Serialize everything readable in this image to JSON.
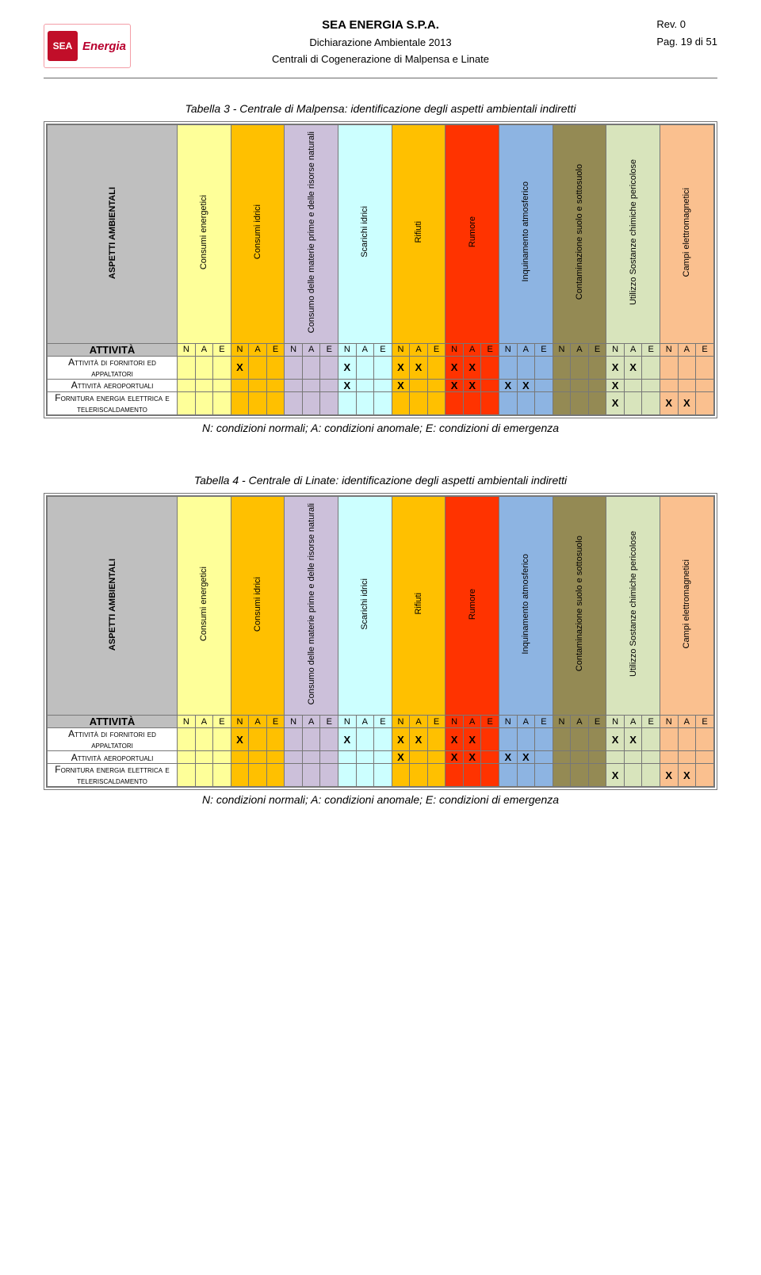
{
  "header": {
    "company": "SEA ENERGIA S.P.A.",
    "doc_title": "Dichiarazione Ambientale 2013",
    "subtitle": "Centrali di Cogenerazione di Malpensa e Linate",
    "rev": "Rev. 0",
    "page": "Pag. 19 di 51",
    "logo_abbr": "SEA",
    "logo_word": "Energia"
  },
  "aspects_label": "ASPETTI AMBIENTALI",
  "activities_label": "ATTIVITÀ",
  "nae_letters": [
    "N",
    "A",
    "E"
  ],
  "columns": [
    {
      "label": "Consumi energetici",
      "bg": "#feff99"
    },
    {
      "label": "Consumi idrici",
      "bg": "#ffc000"
    },
    {
      "label": "Consumo delle materie prime e delle risorse naturali",
      "bg": "#ccc0da"
    },
    {
      "label": "Scarichi idrici",
      "bg": "#ccffff"
    },
    {
      "label": "Rifiuti",
      "bg": "#ffc000"
    },
    {
      "label": "Rumore",
      "bg": "#ff3300"
    },
    {
      "label": "Inquinamento atmosferico",
      "bg": "#8db4e2"
    },
    {
      "label": "Contaminazione suolo e sottosuolo",
      "bg": "#948a54"
    },
    {
      "label": "Utilizzo Sostanze chimiche pericolose",
      "bg": "#d8e4bc"
    },
    {
      "label": "Campi elettromagnetici",
      "bg": "#fac08f"
    }
  ],
  "row_labels": [
    "Attività di fornitori ed appaltatori",
    "Attività aeroportuali",
    "Fornitura energia elettrica e teleriscaldamento"
  ],
  "table3": {
    "caption": "Tabella 3 - Centrale di Malpensa: identificazione degli aspetti ambientali indiretti",
    "marks": [
      [
        "",
        "",
        "",
        "X",
        "",
        "",
        "",
        "",
        "",
        "X",
        "",
        "",
        "X",
        "X",
        "",
        "X",
        "X",
        "",
        "",
        "",
        "",
        "",
        "",
        "",
        "X",
        "X",
        "",
        "",
        "",
        ""
      ],
      [
        "",
        "",
        "",
        "",
        "",
        "",
        "",
        "",
        "",
        "X",
        "",
        "",
        "X",
        "",
        "",
        "X",
        "X",
        "",
        "X",
        "X",
        "",
        "",
        "",
        "",
        "X",
        "",
        "",
        "",
        "",
        ""
      ],
      [
        "",
        "",
        "",
        "",
        "",
        "",
        "",
        "",
        "",
        "",
        "",
        "",
        "",
        "",
        "",
        "",
        "",
        "",
        "",
        "",
        "",
        "",
        "",
        "",
        "X",
        "",
        "",
        "X",
        "X",
        ""
      ]
    ]
  },
  "table4": {
    "caption": "Tabella 4 - Centrale di Linate: identificazione degli aspetti ambientali indiretti",
    "marks": [
      [
        "",
        "",
        "",
        "X",
        "",
        "",
        "",
        "",
        "",
        "X",
        "",
        "",
        "X",
        "X",
        "",
        "X",
        "X",
        "",
        "",
        "",
        "",
        "",
        "",
        "",
        "X",
        "X",
        "",
        "",
        "",
        ""
      ],
      [
        "",
        "",
        "",
        "",
        "",
        "",
        "",
        "",
        "",
        "",
        "",
        "",
        "X",
        "",
        "",
        "X",
        "X",
        "",
        "X",
        "X",
        "",
        "",
        "",
        "",
        "",
        "",
        "",
        "",
        "",
        ""
      ],
      [
        "",
        "",
        "",
        "",
        "",
        "",
        "",
        "",
        "",
        "",
        "",
        "",
        "",
        "",
        "",
        "",
        "",
        "",
        "",
        "",
        "",
        "",
        "",
        "",
        "X",
        "",
        "",
        "X",
        "X",
        ""
      ]
    ]
  },
  "legend": "N: condizioni normali; A: condizioni anomale; E: condizioni di emergenza"
}
